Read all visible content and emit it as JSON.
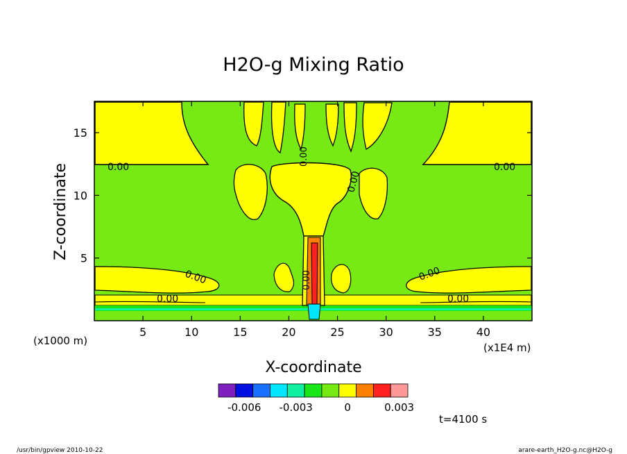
{
  "chart_data": {
    "type": "heatmap",
    "title": "H2O-g Mixing Ratio",
    "xlabel": "X-coordinate",
    "ylabel": "Z-coordinate",
    "x_unit_left": "(x1000 m)",
    "x_unit_right": "(x1E4 m)",
    "xlim": [
      0,
      45
    ],
    "ylim": [
      0,
      17.5
    ],
    "x_ticks": [
      5,
      10,
      15,
      20,
      25,
      30,
      35,
      40
    ],
    "y_ticks": [
      5,
      10,
      15
    ],
    "contour_labels": [
      "0.00",
      "0.00",
      "0.00",
      "0.00",
      "0.00",
      "0.00",
      "0.00",
      "0.00",
      "0.00"
    ],
    "colorbar": {
      "colors": [
        "#7f1fc0",
        "#0010e0",
        "#1a70ff",
        "#00e6ff",
        "#10f0a0",
        "#19e619",
        "#77ea14",
        "#ffff00",
        "#ff8000",
        "#ff2020",
        "#ff9999"
      ],
      "tick_labels": [
        "-0.006",
        "-0.003",
        "0",
        "0.003"
      ],
      "tick_values": [
        -0.006,
        -0.003,
        0,
        0.003
      ]
    },
    "time_label": "t=4100 s"
  },
  "footer": {
    "left": "/usr/bin/gpview  2010-10-22",
    "right": "arare-earth_H2O-g.nc@H2O-g"
  }
}
